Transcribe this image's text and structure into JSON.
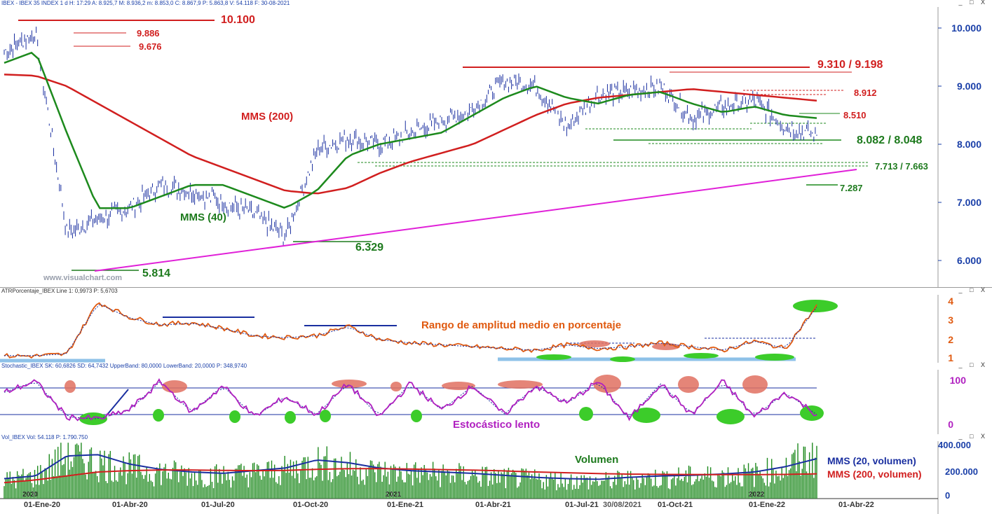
{
  "price_header": "IBEX - IBEX 35 INDEX   1 d  H: 17:29  A: 8.925,7  M: 8.936,2  m: 8.853,0  C: 8.867,9  P: 5.863,8  V: 54.118  F: 30-08-2021",
  "atr_header": "ATRPorcentaje_IBEX Line 1: 0,9973  P: 5,6703",
  "stoch_header": "Stochastic_IBEX  SK: 60,6826  SD: 64,7432  UpperBand: 80,0000  LowerBand: 20,0000  P: 348,9740",
  "vol_header": "Vol_IBEX Vol: 54.118  P: 1.790.750",
  "watermark": "www.visualchart.com",
  "window_controls": "_ □ X",
  "annotations": {
    "level_10100": "10.100",
    "level_9886": "9.886",
    "level_9676": "9.676",
    "level_9310": "9.310 / 9.198",
    "level_8912": "8.912",
    "level_8510": "8.510",
    "level_8082": "8.082 / 8.048",
    "level_7713": "7.713 / 7.663",
    "level_7287": "7.287",
    "level_6329": "6.329",
    "level_5814": "5.814",
    "mms200": "MMS (200)",
    "mms40": "MMS (40)",
    "atr_title": "Rango de amplitud medio en porcentaje",
    "stoch_title": "Estocástico lento",
    "vol_title": "Volumen",
    "vol_mms20": "MMS (20, volumen)",
    "vol_mms200": "MMS (200, volumen)"
  },
  "price_axis": [
    "10.000",
    "9.000",
    "8.000",
    "7.000",
    "6.000"
  ],
  "atr_axis": [
    "4",
    "3",
    "2",
    "1"
  ],
  "stoch_axis": [
    "100",
    "0"
  ],
  "vol_axis": [
    "400.000",
    "200.000",
    "0"
  ],
  "x_ticks": [
    "01-Ene-20",
    "01-Abr-20",
    "01-Jul-20",
    "01-Oct-20",
    "01-Ene-21",
    "01-Abr-21",
    "01-Jul-21",
    "01-Oct-21",
    "01-Ene-22",
    "01-Abr-22"
  ],
  "year_marks": [
    "2020",
    "2021",
    "2022"
  ],
  "cursor_date": "30/08/2021",
  "colors": {
    "price": "#1a2fa0",
    "mms200": "#d11f1f",
    "mms40": "#1d8a1d",
    "support": "#e020d8",
    "annotation_red": "#d11f1f",
    "annotation_green": "#1d7a1d",
    "atr": "#e05a10",
    "stoch": "#b020c0",
    "volume": "#1f8a1f",
    "axis_blue": "#1a3fa8"
  },
  "chart_data": [
    {
      "type": "line",
      "panel": "price",
      "series": [
        {
          "name": "IBEX 35",
          "x": [
            "2020-01",
            "2020-02",
            "2020-03",
            "2020-04",
            "2020-05",
            "2020-06",
            "2020-07",
            "2020-08",
            "2020-09",
            "2020-10",
            "2020-11",
            "2020-12",
            "2021-01",
            "2021-02",
            "2021-03",
            "2021-04",
            "2021-05",
            "2021-06",
            "2021-07",
            "2021-08",
            "2021-09",
            "2021-10",
            "2021-11",
            "2021-12",
            "2022-01",
            "2022-02",
            "2022-03"
          ],
          "values": [
            9600,
            9900,
            6500,
            6700,
            6900,
            7300,
            7200,
            7000,
            6800,
            6400,
            7900,
            8100,
            8000,
            8200,
            8400,
            8600,
            9100,
            9000,
            8300,
            8850,
            8900,
            9000,
            8450,
            8650,
            8750,
            8300,
            8150
          ]
        },
        {
          "name": "MMS (200)",
          "values": [
            9200,
            9180,
            9000,
            8700,
            8400,
            8100,
            7800,
            7600,
            7400,
            7200,
            7150,
            7250,
            7500,
            7700,
            7850,
            8000,
            8250,
            8500,
            8700,
            8800,
            8850,
            8900,
            8950,
            8900,
            8850,
            8800,
            8750
          ]
        },
        {
          "name": "MMS (40)",
          "values": [
            9400,
            9600,
            8200,
            6900,
            6900,
            7100,
            7300,
            7300,
            7100,
            6900,
            7200,
            7800,
            8000,
            8100,
            8200,
            8500,
            8800,
            9000,
            8800,
            8700,
            8850,
            8900,
            8700,
            8550,
            8650,
            8500,
            8450
          ]
        }
      ],
      "horizontal_levels": [
        10100,
        9886,
        9676,
        9310,
        9198,
        8912,
        8510,
        8082,
        8048,
        7713,
        7663,
        7287,
        6329,
        5814
      ],
      "ylim": [
        5650,
        10400
      ]
    },
    {
      "type": "line",
      "panel": "atr",
      "series": [
        {
          "name": "ATRPorcentaje",
          "values": [
            1.1,
            1.1,
            1.2,
            4.0,
            3.2,
            2.8,
            2.9,
            2.6,
            2.2,
            2.1,
            2.2,
            2.7,
            2.0,
            1.8,
            1.7,
            1.6,
            1.5,
            1.4,
            1.7,
            1.5,
            1.6,
            1.8,
            1.6,
            1.4,
            1.9,
            1.5,
            3.8
          ]
        }
      ],
      "ylim": [
        0.8,
        4.2
      ]
    },
    {
      "type": "line",
      "panel": "stochastic",
      "bands": [
        80,
        20
      ],
      "series": [
        {
          "name": "SK",
          "values": [
            70,
            95,
            15,
            10,
            30,
            95,
            25,
            85,
            15,
            60,
            20,
            90,
            15,
            90,
            30,
            85,
            20,
            85,
            45,
            95,
            10,
            90,
            20,
            95,
            15,
            70,
            20
          ]
        }
      ],
      "ylim": [
        -5,
        110
      ]
    },
    {
      "type": "bar",
      "panel": "volume",
      "series": [
        {
          "name": "Vol",
          "values": [
            150000,
            180000,
            350000,
            300000,
            250000,
            220000,
            200000,
            190000,
            210000,
            230000,
            300000,
            260000,
            220000,
            210000,
            200000,
            190000,
            170000,
            160000,
            150000,
            140000,
            160000,
            170000,
            180000,
            190000,
            200000,
            250000,
            380000
          ]
        },
        {
          "name": "MMS (20, volumen)",
          "values": [
            150000,
            170000,
            320000,
            330000,
            260000,
            220000,
            200000,
            190000,
            210000,
            230000,
            290000,
            270000,
            230000,
            210000,
            200000,
            190000,
            175000,
            160000,
            150000,
            145000,
            160000,
            170000,
            175000,
            185000,
            200000,
            240000,
            300000
          ]
        },
        {
          "name": "MMS (200, volumen)",
          "values": [
            120000,
            140000,
            170000,
            200000,
            210000,
            215000,
            215000,
            212000,
            210000,
            212000,
            220000,
            225000,
            225000,
            222000,
            218000,
            214000,
            208000,
            200000,
            194000,
            188000,
            184000,
            182000,
            181000,
            180000,
            180000,
            182000,
            186000
          ]
        }
      ],
      "ylim": [
        0,
        420000
      ]
    }
  ]
}
